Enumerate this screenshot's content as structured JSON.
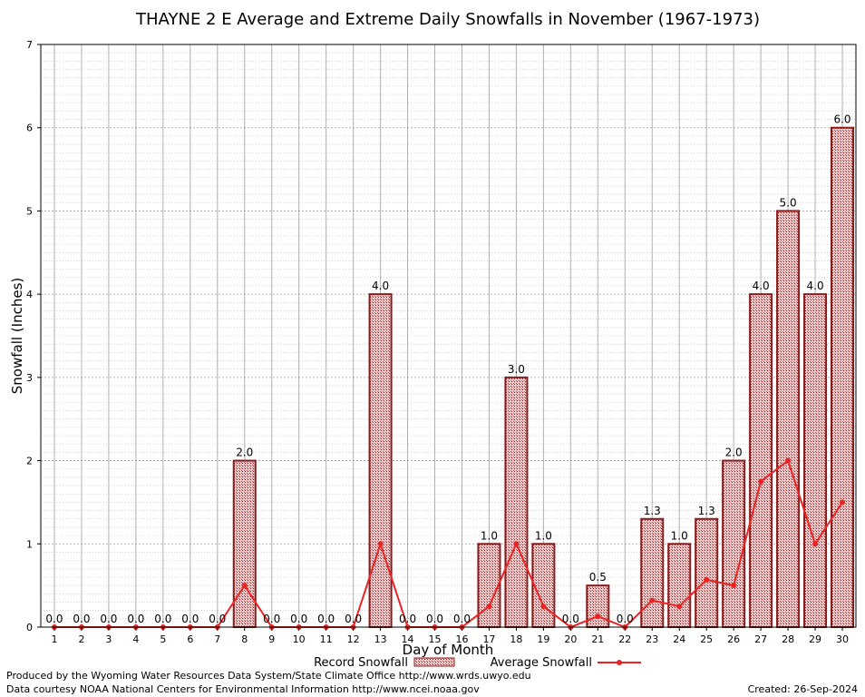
{
  "chart_data": {
    "type": "bar",
    "title": "THAYNE 2 E Average and Extreme Daily Snowfalls in November (1967-1973)",
    "xlabel": "Day of Month",
    "ylabel": "Snowfall (Inches)",
    "ylim": [
      0,
      7
    ],
    "yticks": [
      "0",
      "1",
      "2",
      "3",
      "4",
      "5",
      "6",
      "7"
    ],
    "categories": [
      "1",
      "2",
      "3",
      "4",
      "5",
      "6",
      "7",
      "8",
      "9",
      "10",
      "11",
      "12",
      "13",
      "14",
      "15",
      "16",
      "17",
      "18",
      "19",
      "20",
      "21",
      "22",
      "23",
      "24",
      "25",
      "26",
      "27",
      "28",
      "29",
      "30"
    ],
    "series": [
      {
        "name": "Record Snowfall",
        "kind": "bar",
        "color": "#8b1a1a",
        "values": [
          0,
          0,
          0,
          0,
          0,
          0,
          0,
          2,
          0,
          0,
          0,
          0,
          4,
          0,
          0,
          0,
          1,
          3,
          1,
          0,
          0.5,
          0,
          1.3,
          1,
          1.3,
          2,
          4,
          5,
          4,
          6
        ],
        "labels": [
          "0.0",
          "0.0",
          "0.0",
          "0.0",
          "0.0",
          "0.0",
          "0.0",
          "2.0",
          "0.0",
          "0.0",
          "0.0",
          "0.0",
          "4.0",
          "0.0",
          "0.0",
          "0.0",
          "1.0",
          "3.0",
          "1.0",
          "0.0",
          "0.5",
          "0.0",
          "1.3",
          "1.0",
          "1.3",
          "2.0",
          "4.0",
          "5.0",
          "4.0",
          "6.0"
        ]
      },
      {
        "name": "Average Snowfall",
        "kind": "line",
        "color": "#ee2222",
        "values": [
          0,
          0,
          0,
          0,
          0,
          0,
          0,
          0.5,
          0,
          0,
          0,
          0,
          1,
          0,
          0,
          0,
          0.25,
          1,
          0.25,
          0,
          0.13,
          0,
          0.32,
          0.25,
          0.57,
          0.5,
          1.75,
          2,
          1,
          1.5
        ]
      }
    ],
    "grid": true,
    "legend": "bottom"
  },
  "footer": {
    "line1": "Produced by the Wyoming Water Resources Data System/State Climate Office http://www.wrds.uwyo.edu",
    "line2": "Data courtesy NOAA National Centers for Environmental Information http://www.ncei.noaa.gov",
    "created": "Created:  26-Sep-2024"
  }
}
